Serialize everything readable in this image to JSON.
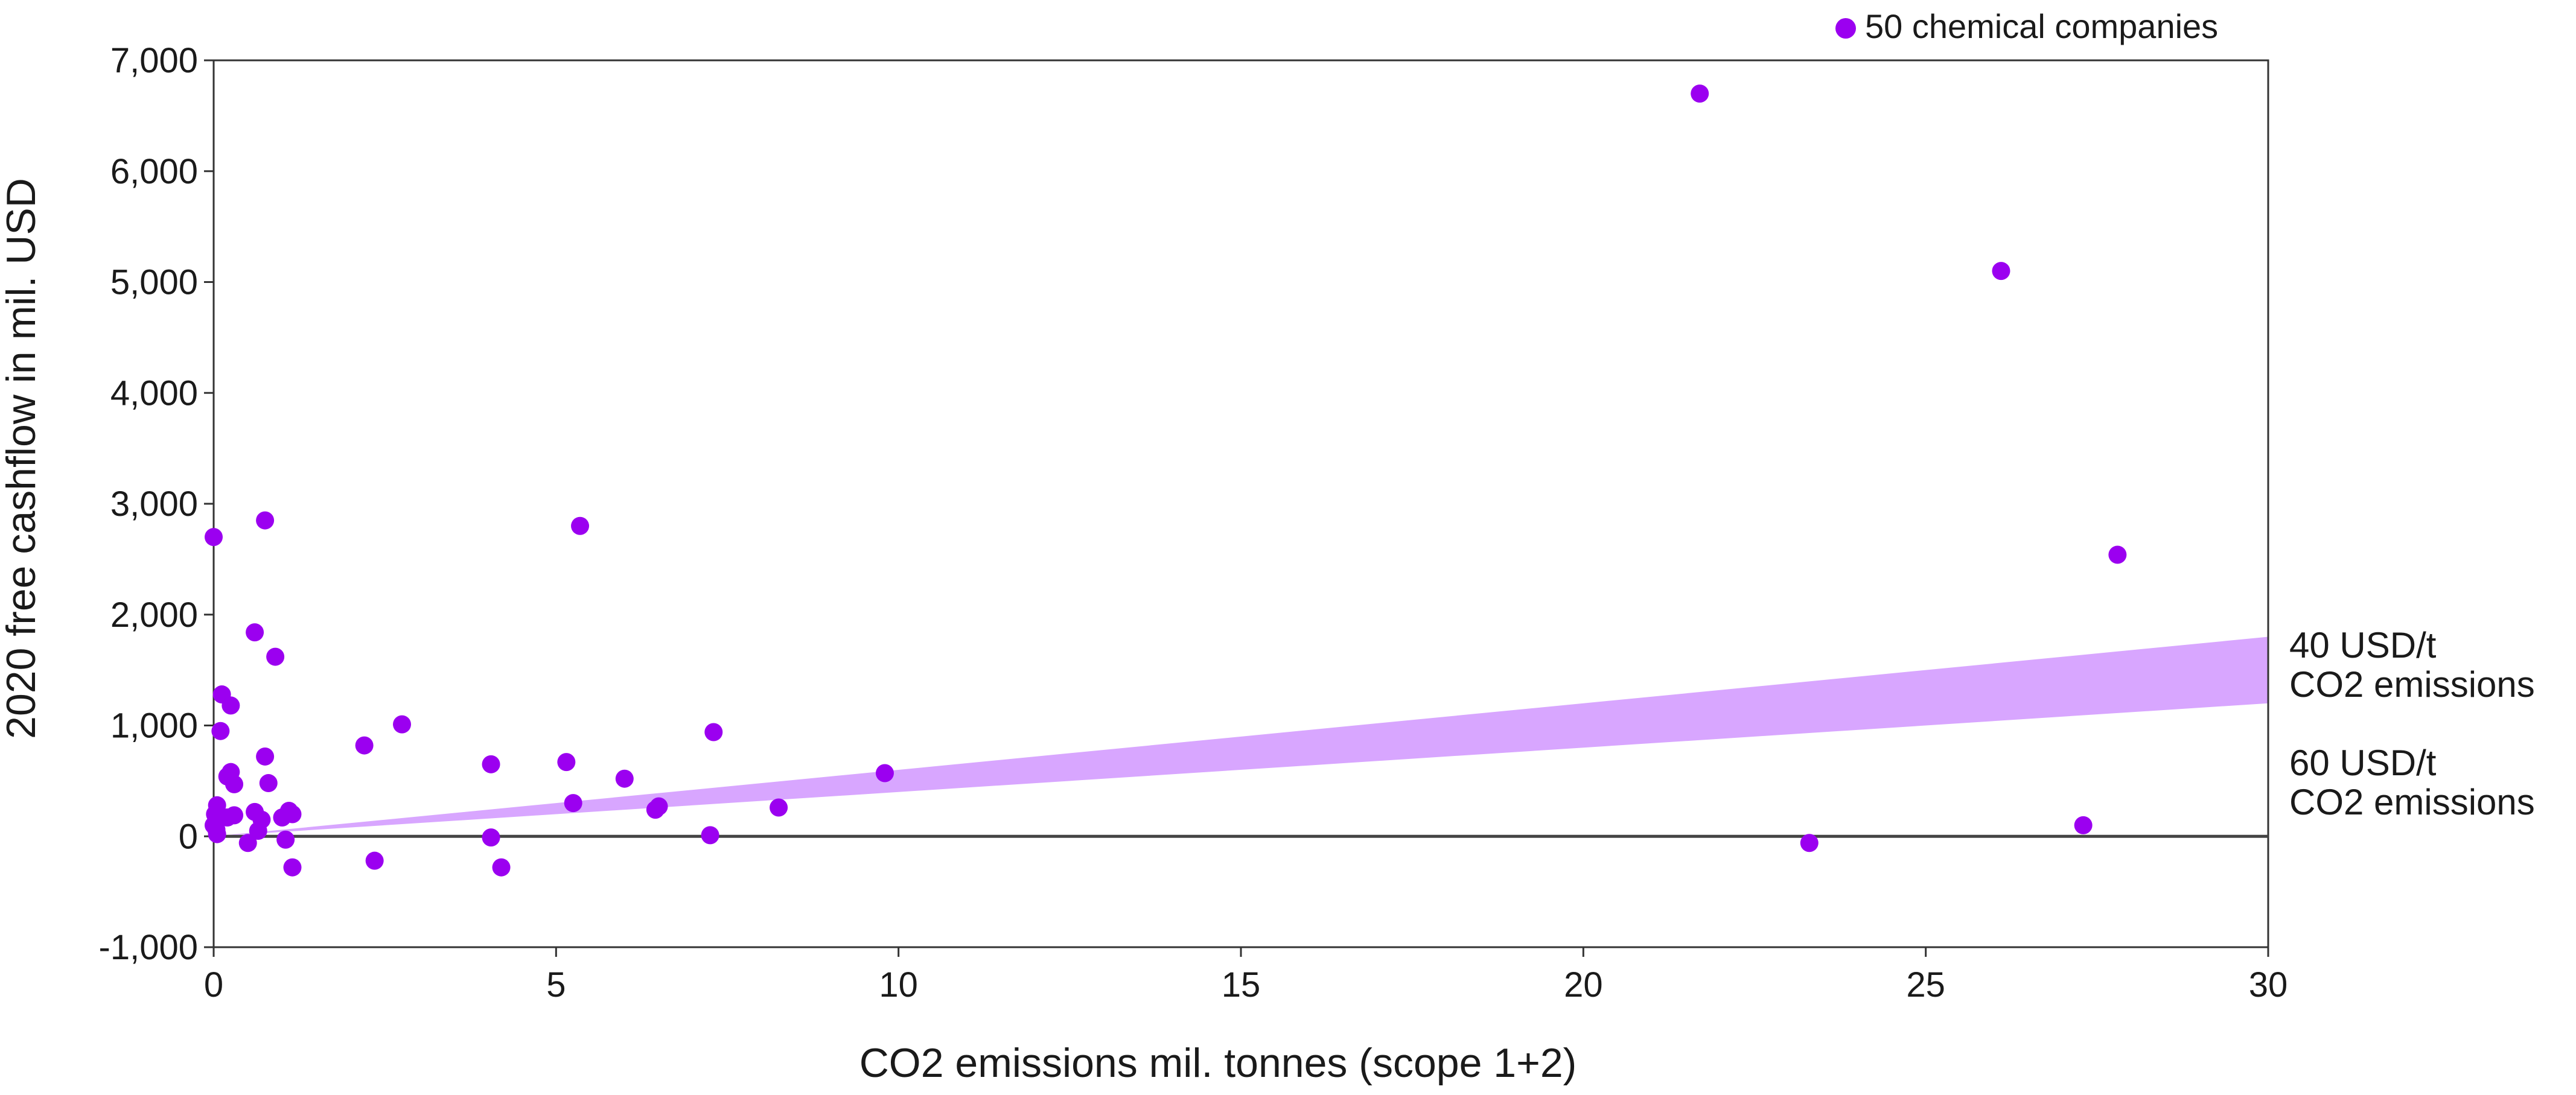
{
  "chart_data": {
    "type": "scatter",
    "title": "",
    "xlabel": "CO2 emissions mil. tonnes (scope 1+2)",
    "ylabel": "2020 free cashflow in mil. USD",
    "xlim": [
      0,
      30
    ],
    "ylim": [
      -1000,
      7000
    ],
    "x_ticks": [
      0,
      5,
      10,
      15,
      20,
      25,
      30
    ],
    "y_ticks": [
      -1000,
      0,
      1000,
      2000,
      3000,
      4000,
      5000,
      6000,
      7000
    ],
    "x_tick_labels": [
      "0",
      "5",
      "10",
      "15",
      "20",
      "25",
      "30"
    ],
    "y_tick_labels": [
      "-1,000",
      "0",
      "1,000",
      "2,000",
      "3,000",
      "4,000",
      "5,000",
      "6,000",
      "7,000"
    ],
    "grid": false,
    "legend": {
      "position": "top-right",
      "entries": [
        "50 chemical companies"
      ]
    },
    "colors": {
      "points": "#9b00f0",
      "band": "#d8a6ff",
      "zero_line": "#444444",
      "axis": "#333333"
    },
    "series": [
      {
        "name": "50 chemical companies",
        "points": [
          {
            "x": 0.0,
            "y": 2700
          },
          {
            "x": 0.05,
            "y": 280
          },
          {
            "x": 0.02,
            "y": 200
          },
          {
            "x": 0.03,
            "y": 120
          },
          {
            "x": 0.04,
            "y": 60
          },
          {
            "x": 0.05,
            "y": 20
          },
          {
            "x": 0.1,
            "y": 950
          },
          {
            "x": 0.12,
            "y": 1280
          },
          {
            "x": 0.2,
            "y": 540
          },
          {
            "x": 0.25,
            "y": 1180
          },
          {
            "x": 0.25,
            "y": 580
          },
          {
            "x": 0.3,
            "y": 470
          },
          {
            "x": 0.2,
            "y": 170
          },
          {
            "x": 0.3,
            "y": 190
          },
          {
            "x": 0.5,
            "y": -60
          },
          {
            "x": 0.6,
            "y": 1840
          },
          {
            "x": 0.6,
            "y": 220
          },
          {
            "x": 0.65,
            "y": 50
          },
          {
            "x": 0.7,
            "y": 150
          },
          {
            "x": 0.75,
            "y": 2850
          },
          {
            "x": 0.75,
            "y": 720
          },
          {
            "x": 0.8,
            "y": 480
          },
          {
            "x": 0.9,
            "y": 1620
          },
          {
            "x": 1.0,
            "y": 170
          },
          {
            "x": 1.05,
            "y": -30
          },
          {
            "x": 1.1,
            "y": 230
          },
          {
            "x": 1.15,
            "y": 200
          },
          {
            "x": 1.15,
            "y": -280
          },
          {
            "x": 2.2,
            "y": 820
          },
          {
            "x": 2.35,
            "y": -220
          },
          {
            "x": 2.75,
            "y": 1010
          },
          {
            "x": 4.05,
            "y": 650
          },
          {
            "x": 4.05,
            "y": -10
          },
          {
            "x": 4.2,
            "y": -280
          },
          {
            "x": 5.15,
            "y": 670
          },
          {
            "x": 5.25,
            "y": 300
          },
          {
            "x": 5.35,
            "y": 2800
          },
          {
            "x": 6.0,
            "y": 520
          },
          {
            "x": 6.45,
            "y": 240
          },
          {
            "x": 6.5,
            "y": 270
          },
          {
            "x": 7.25,
            "y": 10
          },
          {
            "x": 7.3,
            "y": 940
          },
          {
            "x": 8.25,
            "y": 260
          },
          {
            "x": 9.8,
            "y": 570
          },
          {
            "x": 21.7,
            "y": 6700
          },
          {
            "x": 23.3,
            "y": -60
          },
          {
            "x": 26.1,
            "y": 5100
          },
          {
            "x": 27.3,
            "y": 100
          },
          {
            "x": 27.8,
            "y": 2540
          },
          {
            "x": 0.0,
            "y": 100
          }
        ]
      }
    ],
    "band": {
      "x": [
        0,
        30
      ],
      "lower": [
        0,
        1200
      ],
      "upper": [
        0,
        1800
      ],
      "labels": [
        {
          "line1": "40 USD/t",
          "line2": "CO2 emissions"
        },
        {
          "line1": "60 USD/t",
          "line2": "CO2 emissions"
        }
      ]
    }
  }
}
